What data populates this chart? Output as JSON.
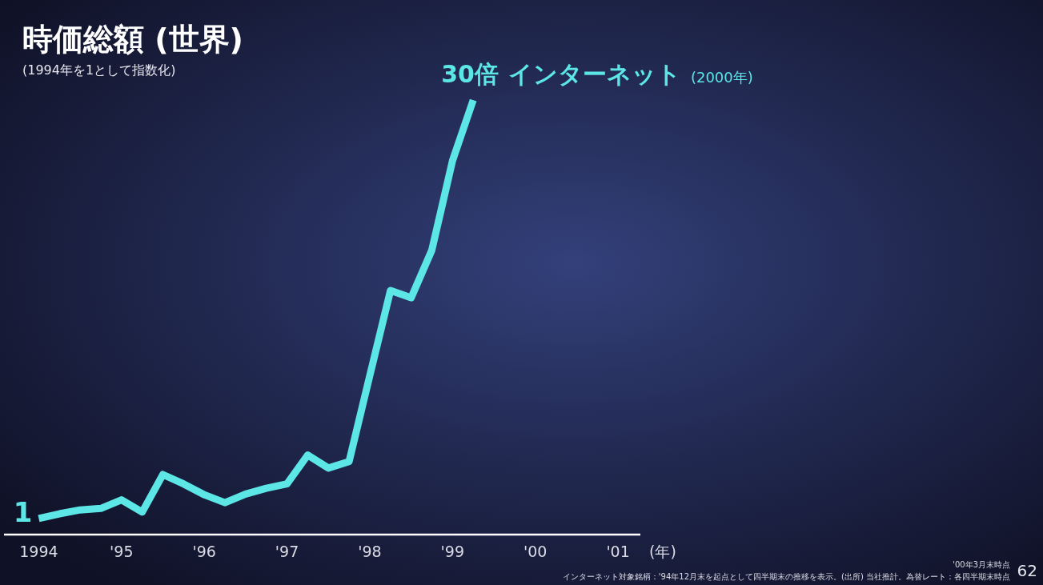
{
  "chart_data": {
    "type": "line",
    "title": "時価総額 (世界)",
    "subtitle": "(1994年を1として指数化)",
    "xlabel": "(年)",
    "x": [
      1994,
      1994.25,
      1994.5,
      1994.75,
      1995,
      1995.25,
      1995.5,
      1995.75,
      1996,
      1996.25,
      1996.5,
      1996.75,
      1997,
      1997.25,
      1997.5,
      1997.75,
      1998,
      1998.25,
      1998.5,
      1998.75,
      1999,
      1999.25
    ],
    "series": [
      {
        "name": "インターネット",
        "color": "#5ce6e6",
        "values": [
          1,
          1.33,
          1.6,
          1.7,
          2.3,
          1.45,
          4.05,
          3.4,
          2.65,
          2.1,
          2.7,
          3.1,
          3.4,
          5.4,
          4.5,
          4.95,
          10.9,
          16.8,
          16.3,
          19.6,
          25.8,
          30
        ],
        "value_labels": [
          "1",
          null,
          null,
          null,
          null,
          null,
          null,
          null,
          null,
          null,
          null,
          null,
          null,
          null,
          null,
          null,
          null,
          null,
          null,
          null,
          null,
          "30倍"
        ]
      }
    ],
    "xlim": [
      1993.58,
      2001.27
    ],
    "xticks": [
      {
        "value": 1994,
        "label": "1994"
      },
      {
        "value": 1995,
        "label": "'95"
      },
      {
        "value": 1996,
        "label": "'96"
      },
      {
        "value": 1997,
        "label": "'97"
      },
      {
        "value": 1998,
        "label": "'98"
      },
      {
        "value": 1999,
        "label": "'99"
      },
      {
        "value": 2000,
        "label": "'00"
      },
      {
        "value": 2001,
        "label": "'01"
      }
    ],
    "tick_labels": "x",
    "marker": "none",
    "line_style": "solid",
    "annotations": [
      "(2000年)",
      "'00年3月末時点",
      "62",
      "インターネット対象銘柄：'94年12月末を起点として四半期末の推移を表示。(出所) 当社推計。為替レート：各四半期末時点"
    ]
  }
}
